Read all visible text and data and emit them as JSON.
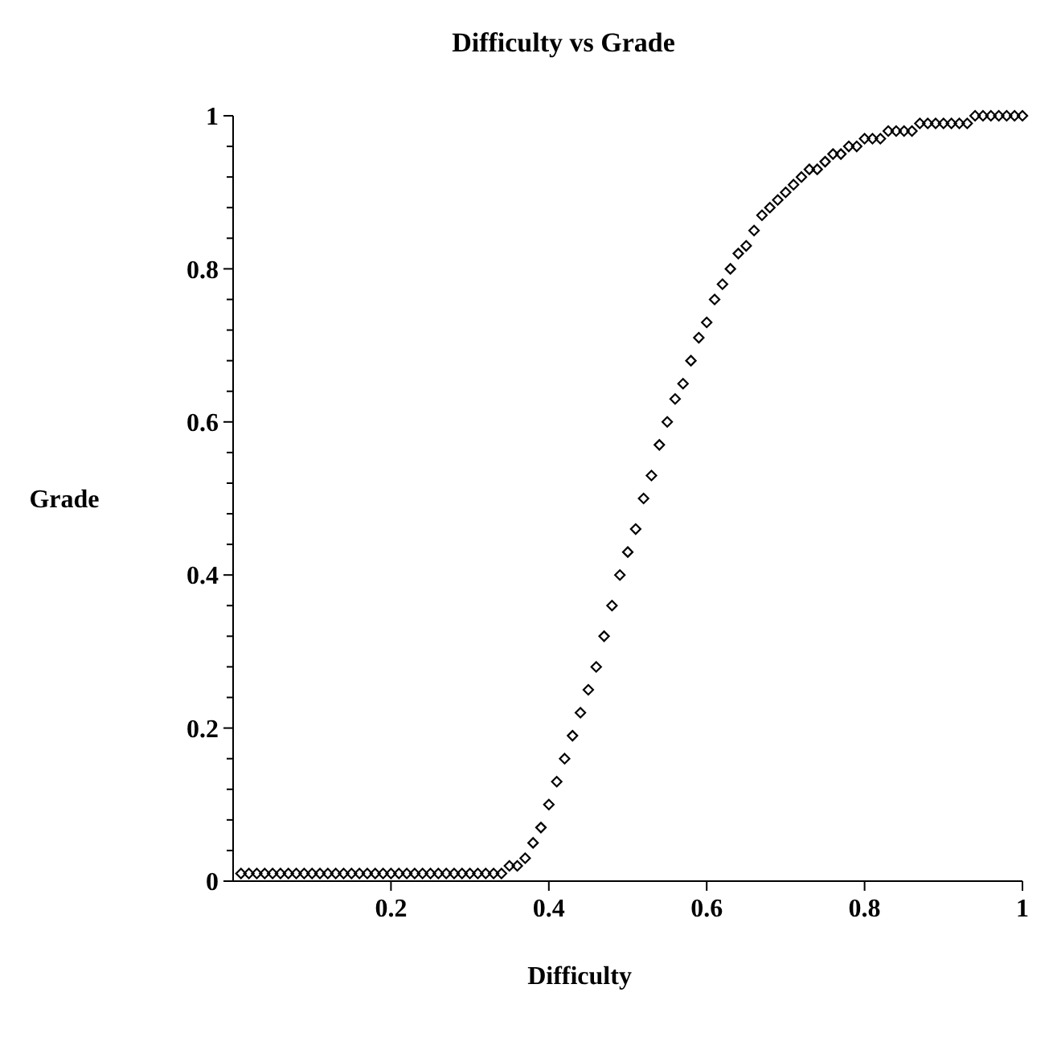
{
  "chart_data": {
    "type": "scatter",
    "title": "Difficulty vs Grade",
    "xlabel": "Difficulty",
    "ylabel": "Grade",
    "marker": "diamond",
    "grid": false,
    "xlim": [
      0,
      1
    ],
    "ylim": [
      0,
      1
    ],
    "xticks": [
      0.2,
      0.4,
      0.6,
      0.8,
      1
    ],
    "yticks": [
      0,
      {
        "value": 0.04,
        "label": null
      },
      {
        "value": 0.08,
        "label": null
      },
      {
        "value": 0.12,
        "label": null
      },
      {
        "value": 0.16,
        "label": null
      },
      0.2,
      {
        "value": 0.24,
        "label": null
      },
      {
        "value": 0.28,
        "label": null
      },
      {
        "value": 0.32,
        "label": null
      },
      {
        "value": 0.36,
        "label": null
      },
      0.4,
      {
        "value": 0.44,
        "label": null
      },
      {
        "value": 0.48,
        "label": null
      },
      {
        "value": 0.52,
        "label": null
      },
      {
        "value": 0.56,
        "label": null
      },
      0.6,
      {
        "value": 0.64,
        "label": null
      },
      {
        "value": 0.68,
        "label": null
      },
      {
        "value": 0.72,
        "label": null
      },
      {
        "value": 0.76,
        "label": null
      },
      0.8,
      {
        "value": 0.84,
        "label": null
      },
      {
        "value": 0.88,
        "label": null
      },
      {
        "value": 0.92,
        "label": null
      },
      {
        "value": 0.96,
        "label": null
      },
      1
    ],
    "x": [
      0.01,
      0.02,
      0.03,
      0.04,
      0.05,
      0.06,
      0.07,
      0.08,
      0.09,
      0.1,
      0.11,
      0.12,
      0.13,
      0.14,
      0.15,
      0.16,
      0.17,
      0.18,
      0.19,
      0.2,
      0.21,
      0.22,
      0.23,
      0.24,
      0.25,
      0.26,
      0.27,
      0.28,
      0.29,
      0.3,
      0.31,
      0.32,
      0.33,
      0.34,
      0.35,
      0.36,
      0.37,
      0.38,
      0.39,
      0.4,
      0.41,
      0.42,
      0.43,
      0.44,
      0.45,
      0.46,
      0.47,
      0.48,
      0.49,
      0.5,
      0.51,
      0.52,
      0.53,
      0.54,
      0.55,
      0.56,
      0.57,
      0.58,
      0.59,
      0.6,
      0.61,
      0.62,
      0.63,
      0.64,
      0.65,
      0.66,
      0.67,
      0.68,
      0.69,
      0.7,
      0.71,
      0.72,
      0.73,
      0.74,
      0.75,
      0.76,
      0.77,
      0.78,
      0.79,
      0.8,
      0.81,
      0.82,
      0.83,
      0.84,
      0.85,
      0.86,
      0.87,
      0.88,
      0.89,
      0.9,
      0.91,
      0.92,
      0.93,
      0.94,
      0.95,
      0.96,
      0.97,
      0.98,
      0.99,
      1
    ],
    "series": [
      {
        "color": "#000000",
        "values": [
          0.01,
          0.01,
          0.01,
          0.01,
          0.01,
          0.01,
          0.01,
          0.01,
          0.01,
          0.01,
          0.01,
          0.01,
          0.01,
          0.01,
          0.01,
          0.01,
          0.01,
          0.01,
          0.01,
          0.01,
          0.01,
          0.01,
          0.01,
          0.01,
          0.01,
          0.01,
          0.01,
          0.01,
          0.01,
          0.01,
          0.01,
          0.01,
          0.01,
          0.01,
          0.02,
          0.02,
          0.03,
          0.05,
          0.07,
          0.1,
          0.13,
          0.16,
          0.19,
          0.22,
          0.25,
          0.28,
          0.32,
          0.36,
          0.4,
          0.43,
          0.46,
          0.5,
          0.53,
          0.57,
          0.6,
          0.63,
          0.65,
          0.68,
          0.71,
          0.73,
          0.76,
          0.78,
          0.8,
          0.82,
          0.83,
          0.85,
          0.87,
          0.88,
          0.89,
          0.9,
          0.91,
          0.92,
          0.93,
          0.93,
          0.94,
          0.95,
          0.95,
          0.96,
          0.96,
          0.97,
          0.97,
          0.97,
          0.98,
          0.98,
          0.98,
          0.98,
          0.99,
          0.99,
          0.99,
          0.99,
          0.99,
          0.99,
          0.99,
          1,
          1,
          1,
          1,
          1,
          1,
          1
        ]
      }
    ]
  }
}
